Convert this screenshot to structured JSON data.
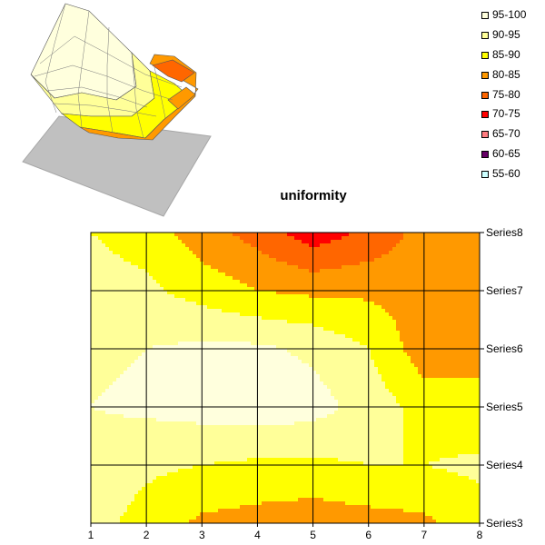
{
  "chart_data": [
    {
      "type": "surface",
      "view": "3d",
      "bands": [
        "95-100",
        "90-95",
        "85-90",
        "80-85",
        "75-80",
        "70-75",
        "65-70",
        "60-65",
        "55-60"
      ]
    },
    {
      "type": "contour",
      "title": "uniformity",
      "xlabel": "",
      "ylabel": "",
      "categories": [
        "1",
        "2",
        "3",
        "4",
        "5",
        "6",
        "7",
        "8"
      ],
      "series_labels": [
        "Series3",
        "Series4",
        "Series5",
        "Series6",
        "Series7",
        "Series8"
      ],
      "grid": true,
      "legend": "top-right",
      "legend_entries": [
        {
          "label": "95-100",
          "color": "#ffffdd"
        },
        {
          "label": "90-95",
          "color": "#ffff99"
        },
        {
          "label": "85-90",
          "color": "#ffff00"
        },
        {
          "label": "80-85",
          "color": "#ff9900"
        },
        {
          "label": "75-80",
          "color": "#ff6600"
        },
        {
          "label": "70-75",
          "color": "#ff0000"
        },
        {
          "label": "65-70",
          "color": "#ff7c80"
        },
        {
          "label": "60-65",
          "color": "#660066"
        },
        {
          "label": "55-60",
          "color": "#ccffff"
        }
      ],
      "series": [
        {
          "name": "Series3",
          "values": [
            92,
            88,
            84,
            83,
            82,
            83,
            84,
            88
          ]
        },
        {
          "name": "Series4",
          "values": [
            93,
            91,
            90,
            89,
            89,
            90,
            90,
            91
          ]
        },
        {
          "name": "Series5",
          "values": [
            95,
            96,
            97,
            98,
            97,
            93,
            88,
            86
          ]
        },
        {
          "name": "Series6",
          "values": [
            94,
            95,
            96,
            96,
            94,
            90,
            82,
            84
          ]
        },
        {
          "name": "Series7",
          "values": [
            92,
            91,
            88,
            85,
            84,
            84,
            83,
            85
          ]
        },
        {
          "name": "Series8",
          "values": [
            90,
            88,
            82,
            78,
            72,
            76,
            82,
            82
          ]
        }
      ]
    }
  ]
}
